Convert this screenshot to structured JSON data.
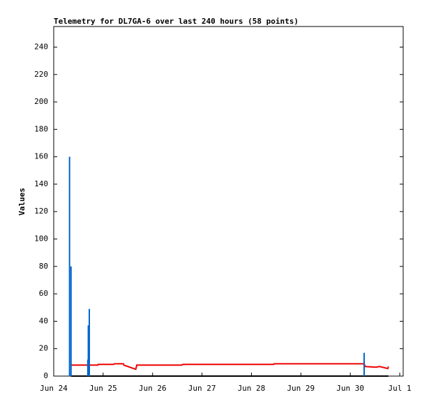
{
  "chart_data": {
    "type": "line",
    "title": "Telemetry for DL7GA-6 over last 240 hours (58 points)",
    "y_label": "Values",
    "xlim": [
      0,
      7.07
    ],
    "xticks": [
      {
        "value": 0,
        "label": "Jun 24"
      },
      {
        "value": 1,
        "label": "Jun 25"
      },
      {
        "value": 2,
        "label": "Jun 26"
      },
      {
        "value": 3,
        "label": "Jun 27"
      },
      {
        "value": 4,
        "label": "Jun 28"
      },
      {
        "value": 5,
        "label": "Jun 29"
      },
      {
        "value": 6,
        "label": "Jun 30"
      },
      {
        "value": 7,
        "label": "Jul 1"
      }
    ],
    "ylim": [
      0,
      255
    ],
    "yticks": [
      0,
      20,
      40,
      60,
      80,
      100,
      120,
      140,
      160,
      180,
      200,
      220,
      240
    ],
    "grid": false,
    "series": [
      {
        "color": "#000000",
        "style": "line",
        "x": [
          0.35,
          6.77
        ],
        "values": [
          0,
          0
        ]
      },
      {
        "color": "#ee0000",
        "style": "line",
        "x": [
          0.35,
          0.89,
          0.9,
          1.21,
          1.23,
          1.41,
          1.42,
          1.66,
          1.68,
          2.59,
          2.61,
          4.45,
          4.46,
          6.28,
          6.3,
          6.52,
          6.59,
          6.76,
          6.77
        ],
        "values": [
          8,
          8,
          8.5,
          8.5,
          9,
          9,
          8,
          5,
          8,
          8,
          8.5,
          8.5,
          9,
          9,
          7,
          6.5,
          7,
          5.5,
          7
        ]
      },
      {
        "color": "#0066cc",
        "style": "impulses",
        "x": [
          0.32,
          0.35,
          0.69,
          0.7,
          0.72,
          6.28
        ],
        "values": [
          160,
          80,
          12,
          37,
          49,
          17
        ]
      }
    ]
  }
}
